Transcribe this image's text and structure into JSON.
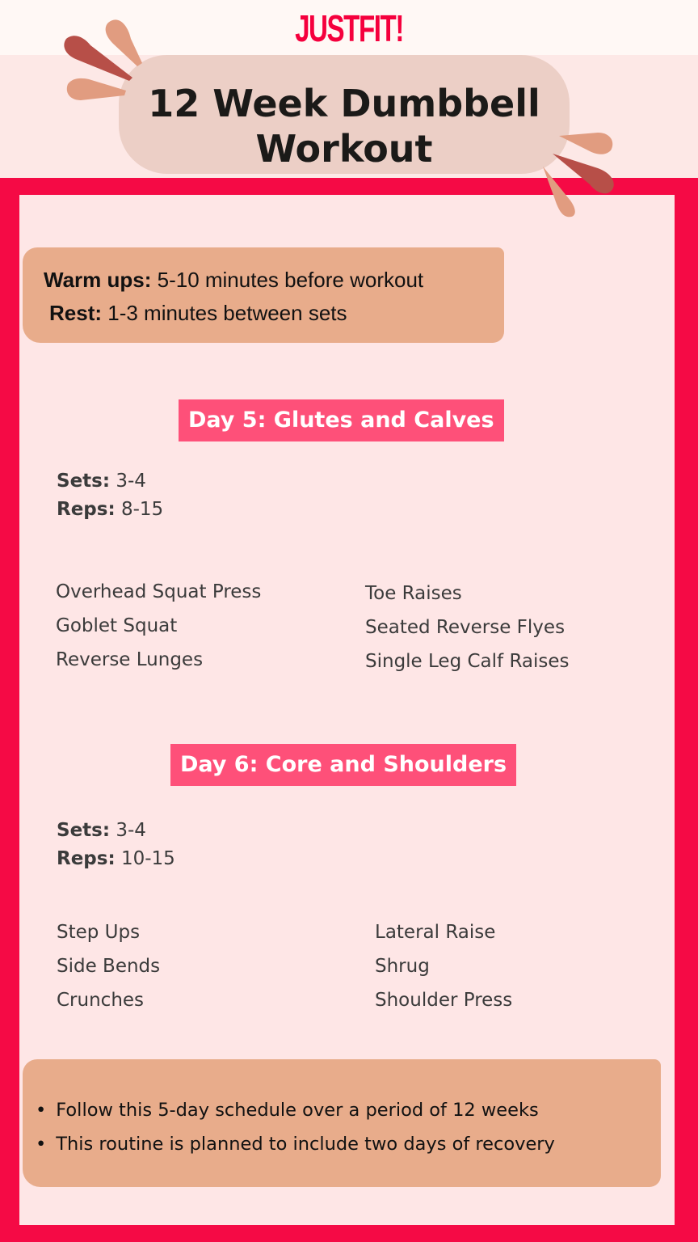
{
  "brand": "JUSTFIT!",
  "title_line1": "12 Week Dumbbell",
  "title_line2": "Workout",
  "general": {
    "warmup_label": "Warm ups:",
    "warmup_value": " 5-10 minutes before workout",
    "rest_label": "Rest:",
    "rest_value": " 1-3 minutes between sets"
  },
  "days": [
    {
      "heading": "Day 5: Glutes and Calves",
      "sets_label": "Sets:",
      "sets_value": " 3-4",
      "reps_label": "Reps:",
      "reps_value": " 8-15",
      "left": [
        "Overhead Squat Press",
        "Goblet Squat",
        "Reverse Lunges"
      ],
      "right": [
        "Toe Raises",
        "Seated Reverse Flyes",
        "Single Leg Calf Raises"
      ]
    },
    {
      "heading": "Day 6: Core and Shoulders",
      "sets_label": "Sets:",
      "sets_value": " 3-4",
      "reps_label": "Reps:",
      "reps_value": " 10-15",
      "left": [
        "Step Ups",
        "Side Bends",
        "Crunches"
      ],
      "right": [
        "Lateral Raise",
        "Shrug",
        "Shoulder Press"
      ]
    }
  ],
  "notes": [
    "Follow this 5-day schedule over a period of 12 weeks",
    "This routine is planned to include two days of recovery"
  ],
  "colors": {
    "frame": "#f50a45",
    "day_heading": "#fe5079",
    "brush": "#e8ac8b",
    "title_pill": "#eccfc6",
    "panel": "#fee6e6"
  }
}
